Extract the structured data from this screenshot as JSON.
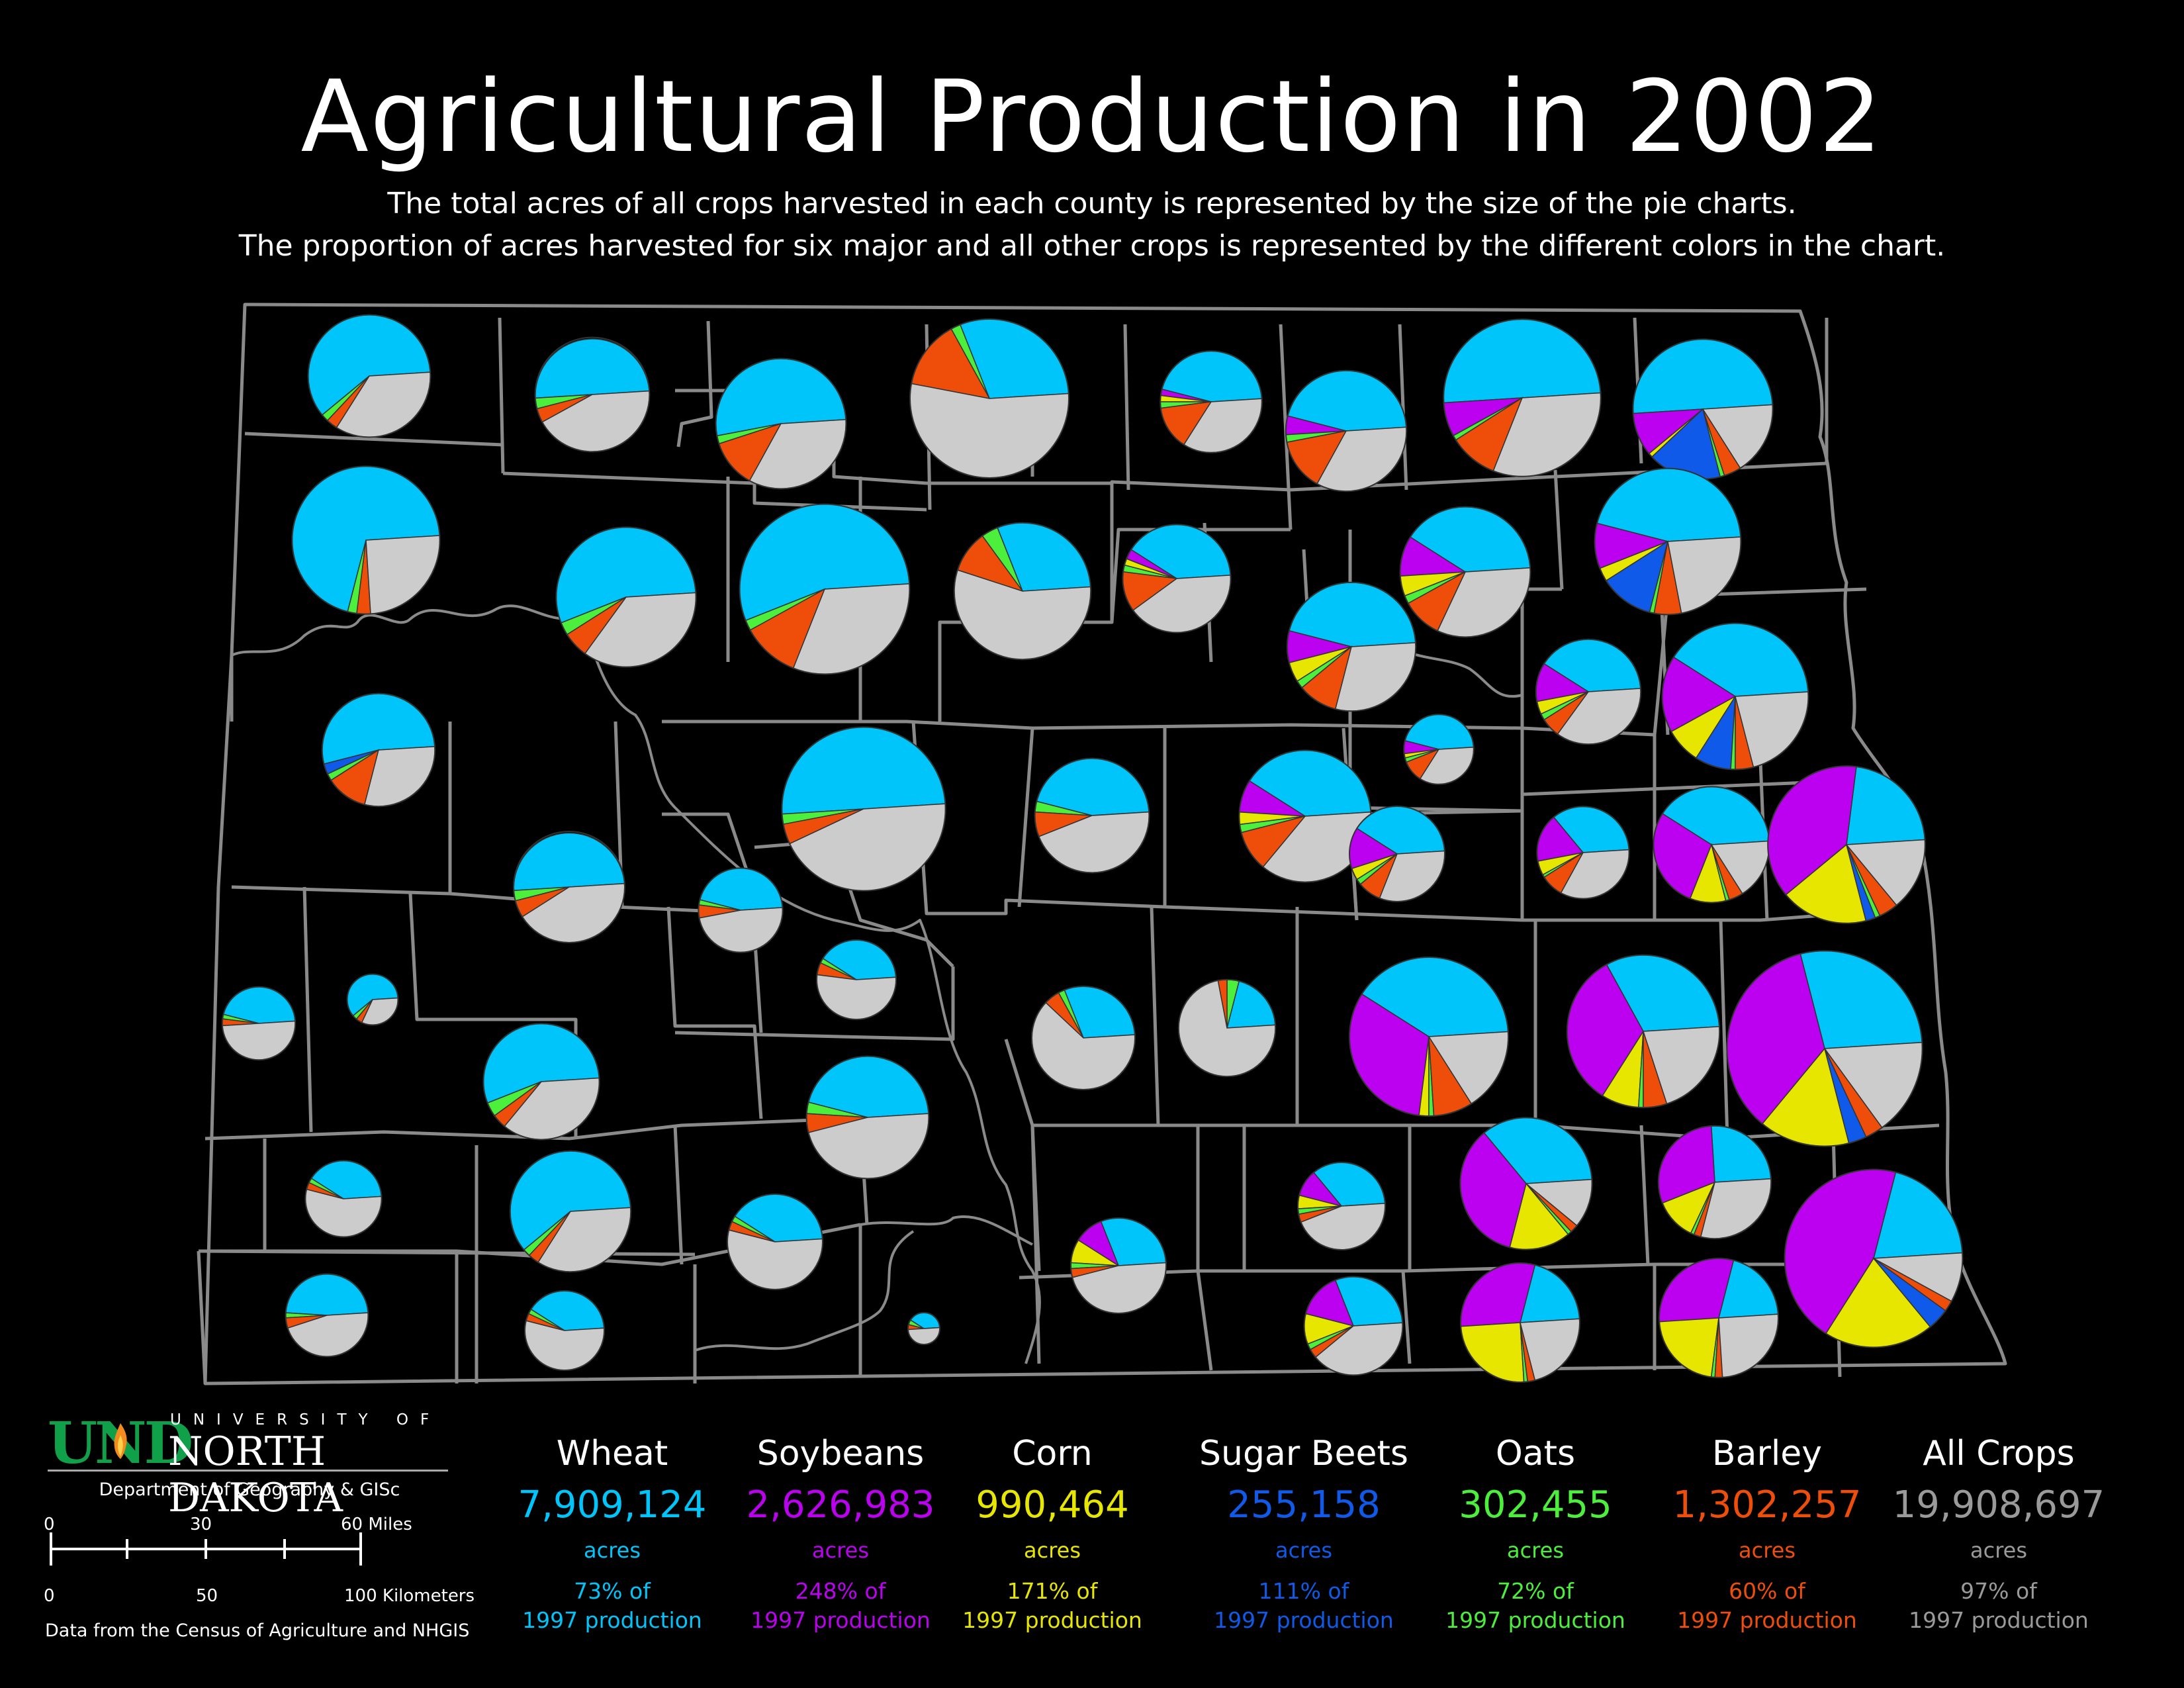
{
  "title": "Agricultural Production in 2002",
  "subtitle_1": "The total acres of all crops harvested in each county is represented by the size of the pie charts.",
  "subtitle_2": "The proportion of acres harvested for six major and all other crops is represented by the different colors in the chart.",
  "colors": {
    "wheat": "#00c5fa",
    "soybeans": "#bc00f0",
    "corn": "#e6e600",
    "sugar_beets": "#0f5ae8",
    "oats": "#4cf03c",
    "barley": "#ee4e0a",
    "other": "#cccccc"
  },
  "chart_data": {
    "type": "pie",
    "slice_order": [
      "wheat",
      "soybeans",
      "corn",
      "sugar_beets",
      "oats",
      "barley",
      "other"
    ],
    "counties": [
      {
        "wheat": 60,
        "soybeans": 0,
        "corn": 0,
        "sugar_beets": 0,
        "oats": 2,
        "barley": 3,
        "other": 35,
        "scale": 0.77
      },
      {
        "wheat": 50,
        "soybeans": 0,
        "corn": 0,
        "sugar_beets": 0,
        "oats": 3,
        "barley": 4,
        "other": 43,
        "scale": 0.72
      },
      {
        "wheat": 52,
        "soybeans": 0,
        "corn": 0,
        "sugar_beets": 0,
        "oats": 2,
        "barley": 12,
        "other": 34,
        "scale": 0.82
      },
      {
        "wheat": 30,
        "soybeans": 0,
        "corn": 0,
        "sugar_beets": 0,
        "oats": 2,
        "barley": 14,
        "other": 54,
        "scale": 1.0
      },
      {
        "wheat": 45,
        "soybeans": 2,
        "corn": 2,
        "sugar_beets": 0,
        "oats": 2,
        "barley": 14,
        "other": 35,
        "scale": 0.64
      },
      {
        "wheat": 45,
        "soybeans": 5,
        "corn": 0,
        "sugar_beets": 0,
        "oats": 2,
        "barley": 14,
        "other": 34,
        "scale": 0.76
      },
      {
        "wheat": 50,
        "soybeans": 7,
        "corn": 0,
        "sugar_beets": 0,
        "oats": 1,
        "barley": 10,
        "other": 32,
        "scale": 0.99
      },
      {
        "wheat": 50,
        "soybeans": 10,
        "corn": 1,
        "sugar_beets": 17,
        "oats": 1,
        "barley": 4,
        "other": 17,
        "scale": 0.88
      },
      {
        "wheat": 70,
        "soybeans": 0,
        "corn": 0,
        "sugar_beets": 0,
        "oats": 2,
        "barley": 3,
        "other": 25,
        "scale": 0.93
      },
      {
        "wheat": 55,
        "soybeans": 0,
        "corn": 0,
        "sugar_beets": 0,
        "oats": 3,
        "barley": 6,
        "other": 36,
        "scale": 0.88
      },
      {
        "wheat": 55,
        "soybeans": 0,
        "corn": 0,
        "sugar_beets": 0,
        "oats": 2,
        "barley": 11,
        "other": 32,
        "scale": 1.07
      },
      {
        "wheat": 30,
        "soybeans": 0,
        "corn": 0,
        "sugar_beets": 0,
        "oats": 4,
        "barley": 10,
        "other": 56,
        "scale": 0.86
      },
      {
        "wheat": 40,
        "soybeans": 3,
        "corn": 2,
        "sugar_beets": 0,
        "oats": 2,
        "barley": 12,
        "other": 41,
        "scale": 0.68
      },
      {
        "wheat": 45,
        "soybeans": 8,
        "corn": 5,
        "sugar_beets": 0,
        "oats": 2,
        "barley": 10,
        "other": 30,
        "scale": 0.81
      },
      {
        "wheat": 40,
        "soybeans": 10,
        "corn": 5,
        "sugar_beets": 0,
        "oats": 2,
        "barley": 10,
        "other": 33,
        "scale": 0.82
      },
      {
        "wheat": 45,
        "soybeans": 10,
        "corn": 3,
        "sugar_beets": 12,
        "oats": 1,
        "barley": 6,
        "other": 23,
        "scale": 0.92
      },
      {
        "wheat": 53,
        "soybeans": 0,
        "corn": 0,
        "sugar_beets": 3,
        "oats": 2,
        "barley": 12,
        "other": 30,
        "scale": 0.71
      },
      {
        "wheat": 40,
        "soybeans": 12,
        "corn": 4,
        "sugar_beets": 0,
        "oats": 2,
        "barley": 6,
        "other": 36,
        "scale": 0.66
      },
      {
        "wheat": 40,
        "soybeans": 17,
        "corn": 8,
        "sugar_beets": 8,
        "oats": 1,
        "barley": 4,
        "other": 22,
        "scale": 0.92
      },
      {
        "wheat": 50,
        "soybeans": 0,
        "corn": 0,
        "sugar_beets": 0,
        "oats": 2,
        "barley": 4,
        "other": 44,
        "scale": 1.03
      },
      {
        "wheat": 45,
        "soybeans": 0,
        "corn": 0,
        "sugar_beets": 0,
        "oats": 3,
        "barley": 7,
        "other": 45,
        "scale": 0.72
      },
      {
        "wheat": 40,
        "soybeans": 8,
        "corn": 3,
        "sugar_beets": 0,
        "oats": 2,
        "barley": 10,
        "other": 37,
        "scale": 0.83
      },
      {
        "wheat": 45,
        "soybeans": 6,
        "corn": 2,
        "sugar_beets": 0,
        "oats": 2,
        "barley": 10,
        "other": 35,
        "scale": 0.44
      },
      {
        "wheat": 40,
        "soybeans": 14,
        "corn": 4,
        "sugar_beets": 0,
        "oats": 2,
        "barley": 8,
        "other": 32,
        "scale": 0.6
      },
      {
        "wheat": 35,
        "soybeans": 17,
        "corn": 5,
        "sugar_beets": 0,
        "oats": 1,
        "barley": 8,
        "other": 34,
        "scale": 0.58
      },
      {
        "wheat": 40,
        "soybeans": 28,
        "corn": 10,
        "sugar_beets": 0,
        "oats": 1,
        "barley": 4,
        "other": 17,
        "scale": 0.73
      },
      {
        "wheat": 22,
        "soybeans": 38,
        "corn": 18,
        "sugar_beets": 2,
        "oats": 1,
        "barley": 4,
        "other": 15,
        "scale": 0.99
      },
      {
        "wheat": 50,
        "soybeans": 0,
        "corn": 0,
        "sugar_beets": 0,
        "oats": 3,
        "barley": 5,
        "other": 42,
        "scale": 0.7
      },
      {
        "wheat": 45,
        "soybeans": 0,
        "corn": 0,
        "sugar_beets": 0,
        "oats": 2,
        "barley": 5,
        "other": 48,
        "scale": 0.53
      },
      {
        "wheat": 40,
        "soybeans": 0,
        "corn": 0,
        "sugar_beets": 0,
        "oats": 2,
        "barley": 5,
        "other": 53,
        "scale": 0.5
      },
      {
        "wheat": 30,
        "soybeans": 0,
        "corn": 0,
        "sugar_beets": 0,
        "oats": 2,
        "barley": 5,
        "other": 63,
        "scale": 0.65
      },
      {
        "wheat": 20,
        "soybeans": 0,
        "corn": 0,
        "sugar_beets": 0,
        "oats": 4,
        "barley": 3,
        "other": 73,
        "scale": 0.61
      },
      {
        "wheat": 40,
        "soybeans": 32,
        "corn": 2,
        "sugar_beets": 0,
        "oats": 1,
        "barley": 8,
        "other": 17,
        "scale": 1.0
      },
      {
        "wheat": 32,
        "soybeans": 33,
        "corn": 8,
        "sugar_beets": 0,
        "oats": 1,
        "barley": 5,
        "other": 21,
        "scale": 0.96
      },
      {
        "wheat": 28,
        "soybeans": 35,
        "corn": 15,
        "sugar_beets": 3,
        "oats": 0,
        "barley": 3,
        "other": 16,
        "scale": 1.23
      },
      {
        "wheat": 45,
        "soybeans": 0,
        "corn": 0,
        "sugar_beets": 0,
        "oats": 2,
        "barley": 3,
        "other": 50,
        "scale": 0.46
      },
      {
        "wheat": 60,
        "soybeans": 0,
        "corn": 0,
        "sugar_beets": 0,
        "oats": 3,
        "barley": 4,
        "other": 33,
        "scale": 0.32
      },
      {
        "wheat": 55,
        "soybeans": 0,
        "corn": 0,
        "sugar_beets": 0,
        "oats": 4,
        "barley": 4,
        "other": 37,
        "scale": 0.73
      },
      {
        "wheat": 45,
        "soybeans": 0,
        "corn": 0,
        "sugar_beets": 0,
        "oats": 3,
        "barley": 5,
        "other": 47,
        "scale": 0.77
      },
      {
        "wheat": 40,
        "soybeans": 0,
        "corn": 0,
        "sugar_beets": 0,
        "oats": 2,
        "barley": 3,
        "other": 55,
        "scale": 0.48
      },
      {
        "wheat": 60,
        "soybeans": 0,
        "corn": 0,
        "sugar_beets": 0,
        "oats": 2,
        "barley": 3,
        "other": 35,
        "scale": 0.76
      },
      {
        "wheat": 40,
        "soybeans": 0,
        "corn": 0,
        "sugar_beets": 0,
        "oats": 2,
        "barley": 3,
        "other": 55,
        "scale": 0.6
      },
      {
        "wheat": 30,
        "soybeans": 10,
        "corn": 8,
        "sugar_beets": 0,
        "oats": 2,
        "barley": 3,
        "other": 47,
        "scale": 0.6
      },
      {
        "wheat": 35,
        "soybeans": 10,
        "corn": 5,
        "sugar_beets": 0,
        "oats": 2,
        "barley": 3,
        "other": 45,
        "scale": 0.55
      },
      {
        "wheat": 35,
        "soybeans": 35,
        "corn": 15,
        "sugar_beets": 0,
        "oats": 1,
        "barley": 2,
        "other": 12,
        "scale": 0.83
      },
      {
        "wheat": 25,
        "soybeans": 30,
        "corn": 12,
        "sugar_beets": 0,
        "oats": 1,
        "barley": 2,
        "other": 30,
        "scale": 0.71
      },
      {
        "wheat": 20,
        "soybeans": 45,
        "corn": 20,
        "sugar_beets": 4,
        "oats": 0,
        "barley": 2,
        "other": 9,
        "scale": 1.12
      },
      {
        "wheat": 48,
        "soybeans": 0,
        "corn": 0,
        "sugar_beets": 0,
        "oats": 2,
        "barley": 4,
        "other": 46,
        "scale": 0.52
      },
      {
        "wheat": 40,
        "soybeans": 0,
        "corn": 0,
        "sugar_beets": 0,
        "oats": 2,
        "barley": 3,
        "other": 55,
        "scale": 0.5
      },
      {
        "wheat": 30,
        "soybeans": 15,
        "corn": 10,
        "sugar_beets": 0,
        "oats": 2,
        "barley": 3,
        "other": 40,
        "scale": 0.62
      },
      {
        "wheat": 20,
        "soybeans": 30,
        "corn": 25,
        "sugar_beets": 0,
        "oats": 1,
        "barley": 2,
        "other": 22,
        "scale": 0.75
      },
      {
        "wheat": 20,
        "soybeans": 30,
        "corn": 22,
        "sugar_beets": 0,
        "oats": 1,
        "barley": 2,
        "other": 25,
        "scale": 0.75
      },
      {
        "wheat": 40,
        "soybeans": 0,
        "corn": 0,
        "sugar_beets": 0,
        "oats": 5,
        "barley": 5,
        "other": 50,
        "scale": 0.2
      }
    ]
  },
  "legend": [
    {
      "name": "Wheat",
      "value": "7,909,124",
      "unit": "acres",
      "pct_1": "73% of",
      "pct_2": "1997 production",
      "color": "#00c5fa"
    },
    {
      "name": "Soybeans",
      "value": "2,626,983",
      "unit": "acres",
      "pct_1": "248% of",
      "pct_2": "1997 production",
      "color": "#bc00f0"
    },
    {
      "name": "Corn",
      "value": "990,464",
      "unit": "acres",
      "pct_1": "171% of",
      "pct_2": "1997 production",
      "color": "#e6e600"
    },
    {
      "name": "Sugar Beets",
      "value": "255,158",
      "unit": "acres",
      "pct_1": "111% of",
      "pct_2": "1997 production",
      "color": "#0f5ae8"
    },
    {
      "name": "Oats",
      "value": "302,455",
      "unit": "acres",
      "pct_1": "72% of",
      "pct_2": "1997 production",
      "color": "#4cf03c"
    },
    {
      "name": "Barley",
      "value": "1,302,257",
      "unit": "acres",
      "pct_1": "60% of",
      "pct_2": "1997 production",
      "color": "#ee4e0a"
    },
    {
      "name": "All Crops",
      "value": "19,908,697",
      "unit": "acres",
      "pct_1": "97% of",
      "pct_2": "1997 production",
      "color": "#9a9a9a"
    }
  ],
  "logo": {
    "und": "UND",
    "university_of": "UNIVERSITY OF",
    "north_dakota": "NORTH DAKOTA"
  },
  "department": "Department of Geography & GISc",
  "scale_bar": {
    "miles_labels": [
      "0",
      "30",
      "60 Miles"
    ],
    "km_labels": [
      "0",
      "50",
      "100 Kilometers"
    ]
  },
  "credit": "Data from the Census of Agriculture and NHGIS"
}
